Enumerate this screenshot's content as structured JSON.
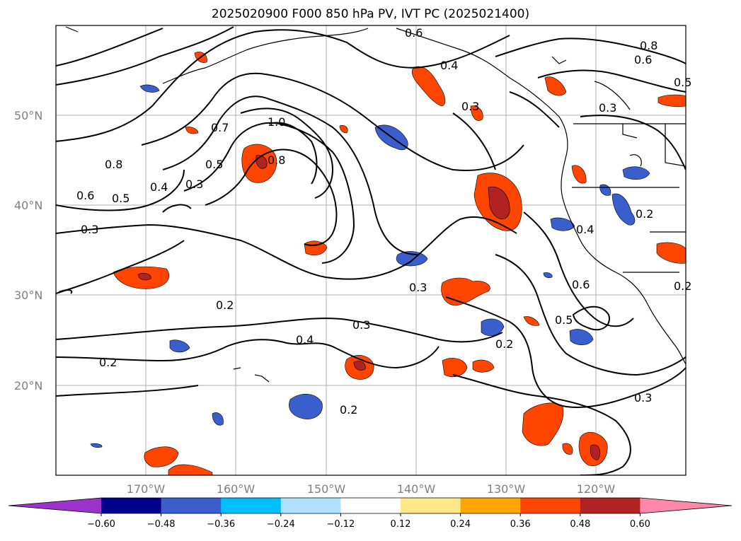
{
  "title": "2025020900 F000 850 hPa PV, IVT PC (2025021400)",
  "lat_labels": [
    "50°N",
    "40°N",
    "30°N",
    "20°N"
  ],
  "lon_labels": [
    "170°W",
    "160°W",
    "150°W",
    "140°W",
    "130°W",
    "120°W"
  ],
  "colorbar": {
    "ticks": [
      "−0.60",
      "−0.48",
      "−0.36",
      "−0.24",
      "−0.12",
      "0.12",
      "0.24",
      "0.36",
      "0.48",
      "0.60"
    ],
    "colors": [
      "#9933cc",
      "#00008b",
      "#3a5fcd",
      "#00bfff",
      "#b0e2ff",
      "#ffffff",
      "#ffe88a",
      "#ffa500",
      "#ff4500",
      "#b22222",
      "#ff88aa"
    ]
  },
  "contour_labels": [
    "0.6",
    "0.4",
    "0.3",
    "1.0",
    "0.8",
    "0.7",
    "0.5",
    "0.3",
    "0.8",
    "0.6",
    "0.5",
    "0.4",
    "0.3",
    "0.2",
    "0.3",
    "0.4",
    "0.3",
    "0.2",
    "0.2",
    "0.2",
    "0.6",
    "0.5",
    "0.4",
    "0.3",
    "0.2",
    "0.8",
    "0.6",
    "0.3",
    "0.2",
    "0.5"
  ]
}
